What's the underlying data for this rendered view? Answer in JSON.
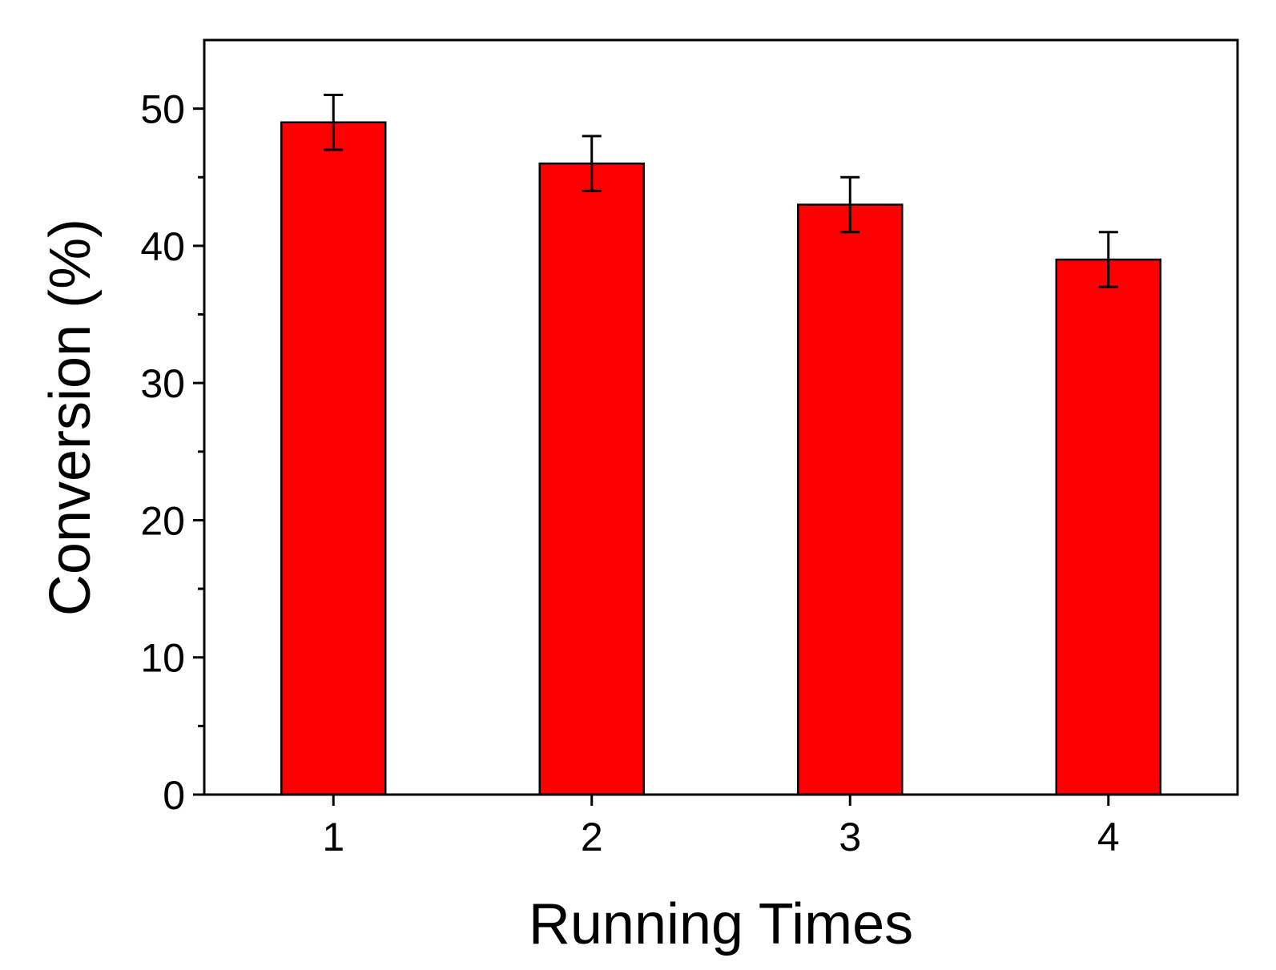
{
  "chart_data": {
    "type": "bar",
    "categories": [
      "1",
      "2",
      "3",
      "4"
    ],
    "values": [
      49,
      46,
      43,
      39
    ],
    "errors": [
      2,
      2,
      2,
      2
    ],
    "xlabel": "Running Times",
    "ylabel": "Conversion (%)",
    "ylim": [
      0,
      55
    ],
    "yticks": [
      0,
      10,
      20,
      30,
      40,
      50
    ],
    "yticks_minor": [
      5,
      15,
      25,
      35,
      45
    ],
    "ytick_labels": [
      "0",
      "10",
      "20",
      "30",
      "40",
      "50"
    ],
    "grid": false,
    "legend": "none",
    "bar_color": "#ff0000",
    "edge_color": "#000000"
  }
}
